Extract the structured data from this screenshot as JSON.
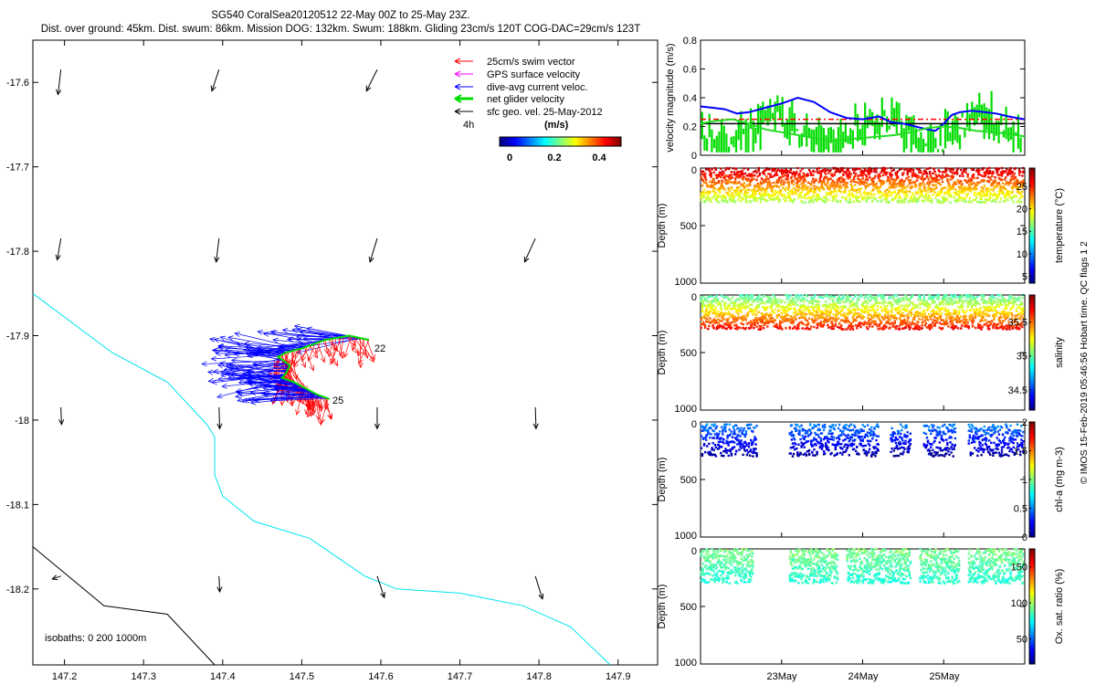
{
  "header": {
    "title": "SG540 CoralSea20120512 22-May 00Z to 25-May 23Z.",
    "subtitle": "Dist. over ground: 45km. Dist. swum: 86km. Mission DOG: 132km. Swum: 188km. Gliding 23cm/s 120T COG-DAC=29cm/s 123T"
  },
  "side_note": "© IMOS 15-Feb-2019 05:46:56 Hobart time. QC flags 1  2",
  "colors": {
    "swim": "#ff0000",
    "gps": "#ff00ff",
    "dac": "#0000ff",
    "net": "#00dd00",
    "geo": "#000000",
    "isobath0": "#000000",
    "isobath200": "#00e5ee"
  },
  "chart_data": [
    {
      "type": "map",
      "name": "track",
      "xlim": [
        147.16,
        147.95
      ],
      "ylim": [
        -18.29,
        -17.55
      ],
      "x_ticks": [
        147.2,
        147.3,
        147.4,
        147.5,
        147.6,
        147.7,
        147.8,
        147.9
      ],
      "x_tick_labels": [
        "147.2",
        "147.3",
        "147.4",
        "147.5",
        "147.6",
        "147.7",
        "147.8",
        "147.9"
      ],
      "y_ticks": [
        -17.6,
        -17.7,
        -17.8,
        -17.9,
        -18.0,
        -18.1,
        -18.2
      ],
      "y_tick_labels": [
        "-17.6",
        "-17.7",
        "-17.8",
        "-17.9",
        "-18",
        "-18.1",
        "-18.2"
      ],
      "legend": {
        "placement": "top-right",
        "entries": [
          "25cm/s swim vector",
          "GPS surface velocity",
          "dive-avg current veloc.",
          "net glider velocity",
          "sfc geo. vel. 25-May-2012"
        ],
        "interval": "4h"
      },
      "colorbar": {
        "label": "(m/s)",
        "ticks": [
          "0",
          "0.2",
          "0.4"
        ]
      },
      "annotations": [
        {
          "text": "22",
          "lon": 147.586,
          "lat": -17.905
        },
        {
          "text": "25",
          "lon": 147.535,
          "lat": -17.975
        }
      ],
      "isobath_label": "isobaths: 0   200   1000m",
      "coast_line": [
        [
          147.16,
          -18.15
        ],
        [
          147.25,
          -18.22
        ],
        [
          147.33,
          -18.23
        ],
        [
          147.39,
          -18.29
        ]
      ],
      "isobath_200_line": [
        [
          147.16,
          -17.85
        ],
        [
          147.26,
          -17.92
        ],
        [
          147.33,
          -17.955
        ],
        [
          147.38,
          -18.005
        ],
        [
          147.39,
          -18.02
        ],
        [
          147.39,
          -18.065
        ],
        [
          147.4,
          -18.09
        ],
        [
          147.44,
          -18.12
        ],
        [
          147.51,
          -18.14
        ],
        [
          147.58,
          -18.185
        ],
        [
          147.62,
          -18.2
        ],
        [
          147.7,
          -18.205
        ],
        [
          147.78,
          -18.22
        ],
        [
          147.84,
          -18.245
        ],
        [
          147.89,
          -18.29
        ]
      ],
      "geo_vectors": [
        {
          "lon": 147.2,
          "lat": -17.6,
          "u": -0.04,
          "v": -0.35
        },
        {
          "lon": 147.4,
          "lat": -17.6,
          "u": -0.1,
          "v": -0.3
        },
        {
          "lon": 147.6,
          "lat": -17.6,
          "u": -0.15,
          "v": -0.3
        },
        {
          "lon": 147.2,
          "lat": -17.8,
          "u": -0.05,
          "v": -0.3
        },
        {
          "lon": 147.4,
          "lat": -17.8,
          "u": -0.04,
          "v": -0.33
        },
        {
          "lon": 147.6,
          "lat": -17.8,
          "u": -0.1,
          "v": -0.33
        },
        {
          "lon": 147.8,
          "lat": -17.8,
          "u": -0.15,
          "v": -0.33
        },
        {
          "lon": 147.2,
          "lat": -18.0,
          "u": 0.01,
          "v": -0.24
        },
        {
          "lon": 147.4,
          "lat": -18.0,
          "u": 0.01,
          "v": -0.3
        },
        {
          "lon": 147.6,
          "lat": -18.0,
          "u": 0.0,
          "v": -0.3
        },
        {
          "lon": 147.8,
          "lat": -18.0,
          "u": 0.01,
          "v": -0.3
        },
        {
          "lon": 147.2,
          "lat": -18.2,
          "u": -0.12,
          "v": -0.04
        },
        {
          "lon": 147.4,
          "lat": -18.2,
          "u": 0.01,
          "v": -0.22
        },
        {
          "lon": 147.6,
          "lat": -18.2,
          "u": 0.1,
          "v": -0.3
        },
        {
          "lon": 147.8,
          "lat": -18.2,
          "u": 0.1,
          "v": -0.32
        }
      ],
      "track_points": [
        [
          147.585,
          -17.905
        ],
        [
          147.56,
          -17.9
        ],
        [
          147.53,
          -17.905
        ],
        [
          147.5,
          -17.915
        ],
        [
          147.48,
          -17.92
        ],
        [
          147.47,
          -17.925
        ],
        [
          147.485,
          -17.935
        ],
        [
          147.48,
          -17.945
        ],
        [
          147.475,
          -17.95
        ],
        [
          147.49,
          -17.955
        ],
        [
          147.5,
          -17.96
        ],
        [
          147.51,
          -17.965
        ],
        [
          147.52,
          -17.97
        ],
        [
          147.535,
          -17.975
        ]
      ]
    },
    {
      "type": "line",
      "name": "velocity",
      "ylabel": "velocity magnitude (m/s)",
      "ylim": [
        0,
        0.8
      ],
      "y_ticks": [
        0,
        0.2,
        0.4,
        0.6,
        0.8
      ],
      "y_tick_labels": [
        "0",
        "0.2",
        "0.4",
        "0.6",
        "0.8"
      ],
      "xlim_days": [
        22,
        26
      ],
      "x_tick_days": [
        23,
        24,
        25
      ],
      "x_tick_labels": [
        "23May",
        "24May",
        "25May"
      ],
      "reference_lines": [
        {
          "name": "dashed",
          "value": 0.25
        },
        {
          "name": "black",
          "value": 0.22
        }
      ],
      "series": [
        {
          "key": "dac",
          "x": [
            22.0,
            22.15,
            22.3,
            22.45,
            22.6,
            22.8,
            23.0,
            23.2,
            23.4,
            23.6,
            23.8,
            24.0,
            24.2,
            24.35,
            24.5,
            24.65,
            24.8,
            24.9,
            25.0,
            25.1,
            25.2,
            25.35,
            25.5,
            25.65,
            25.8,
            25.9,
            26.0
          ],
          "y": [
            0.34,
            0.33,
            0.32,
            0.29,
            0.3,
            0.33,
            0.36,
            0.4,
            0.37,
            0.3,
            0.26,
            0.25,
            0.27,
            0.23,
            0.22,
            0.2,
            0.18,
            0.17,
            0.22,
            0.28,
            0.3,
            0.31,
            0.3,
            0.29,
            0.27,
            0.26,
            0.25
          ]
        },
        {
          "key": "net",
          "x": [
            22.0,
            22.2,
            22.4,
            22.6,
            22.8,
            23.0,
            23.2,
            23.4,
            23.6,
            23.8,
            24.0,
            24.2,
            24.4,
            24.6,
            24.8,
            25.0,
            25.2,
            25.4,
            25.6,
            25.8,
            26.0
          ],
          "y": [
            0.22,
            0.24,
            0.25,
            0.22,
            0.18,
            0.16,
            0.14,
            0.12,
            0.1,
            0.11,
            0.12,
            0.13,
            0.14,
            0.16,
            0.19,
            0.2,
            0.19,
            0.17,
            0.16,
            0.15,
            0.13
          ]
        }
      ]
    },
    {
      "type": "scatter",
      "name": "temperature",
      "ylabel": "Depth (m)",
      "ylim": [
        1000,
        0
      ],
      "y_ticks": [
        0,
        500,
        1000
      ],
      "y_tick_labels": [
        "0",
        "500",
        "1000"
      ],
      "colorbar": {
        "label": "temperature (°C)",
        "min": 3.5,
        "max": 29,
        "ticks": [
          5,
          10,
          15,
          20,
          25
        ],
        "tick_labels": [
          "5",
          "10",
          "15",
          "20",
          "25"
        ]
      },
      "depth_range": [
        0,
        300
      ],
      "value_at_top": 27.5,
      "value_at_bottom": 17
    },
    {
      "type": "scatter",
      "name": "salinity",
      "ylabel": "Depth (m)",
      "ylim": [
        1000,
        0
      ],
      "y_ticks": [
        0,
        500,
        1000
      ],
      "y_tick_labels": [
        "0",
        "500",
        "1000"
      ],
      "colorbar": {
        "label": "salinity",
        "min": 34.2,
        "max": 35.9,
        "ticks": [
          34.5,
          35,
          35.5
        ],
        "tick_labels": [
          "34.5",
          "35",
          "35.5"
        ]
      },
      "depth_range": [
        0,
        300
      ],
      "value_at_top": 34.95,
      "value_at_bottom": 35.7
    },
    {
      "type": "scatter",
      "name": "chl",
      "ylabel": "Depth (m)",
      "ylim": [
        1000,
        0
      ],
      "y_ticks": [
        0,
        500,
        1000
      ],
      "y_tick_labels": [
        "0",
        "500",
        "1000"
      ],
      "colorbar": {
        "label": "chl-a (mg m-3)",
        "min": 0,
        "max": 2,
        "ticks": [
          0,
          0.5,
          1,
          1.5,
          2
        ],
        "tick_labels": [
          "0",
          "0.5",
          "1",
          "1.5",
          "2"
        ]
      },
      "depth_range": [
        0,
        300
      ],
      "value_at_top": 0.55,
      "value_at_bottom": 0.05
    },
    {
      "type": "scatter",
      "name": "oxygen",
      "ylabel": "Depth (m)",
      "ylim": [
        1000,
        0
      ],
      "y_ticks": [
        0,
        500,
        1000
      ],
      "y_tick_labels": [
        "0",
        "500",
        "1000"
      ],
      "x_tick_labels": [
        "23May",
        "24May",
        "25May"
      ],
      "colorbar": {
        "label": "Ox. sat. ratio (%)",
        "min": 15,
        "max": 175,
        "ticks": [
          50,
          100,
          150
        ],
        "tick_labels": [
          "50",
          "100",
          "150"
        ]
      },
      "depth_range": [
        0,
        300
      ],
      "value_at_top": 95,
      "value_at_bottom": 80
    }
  ]
}
